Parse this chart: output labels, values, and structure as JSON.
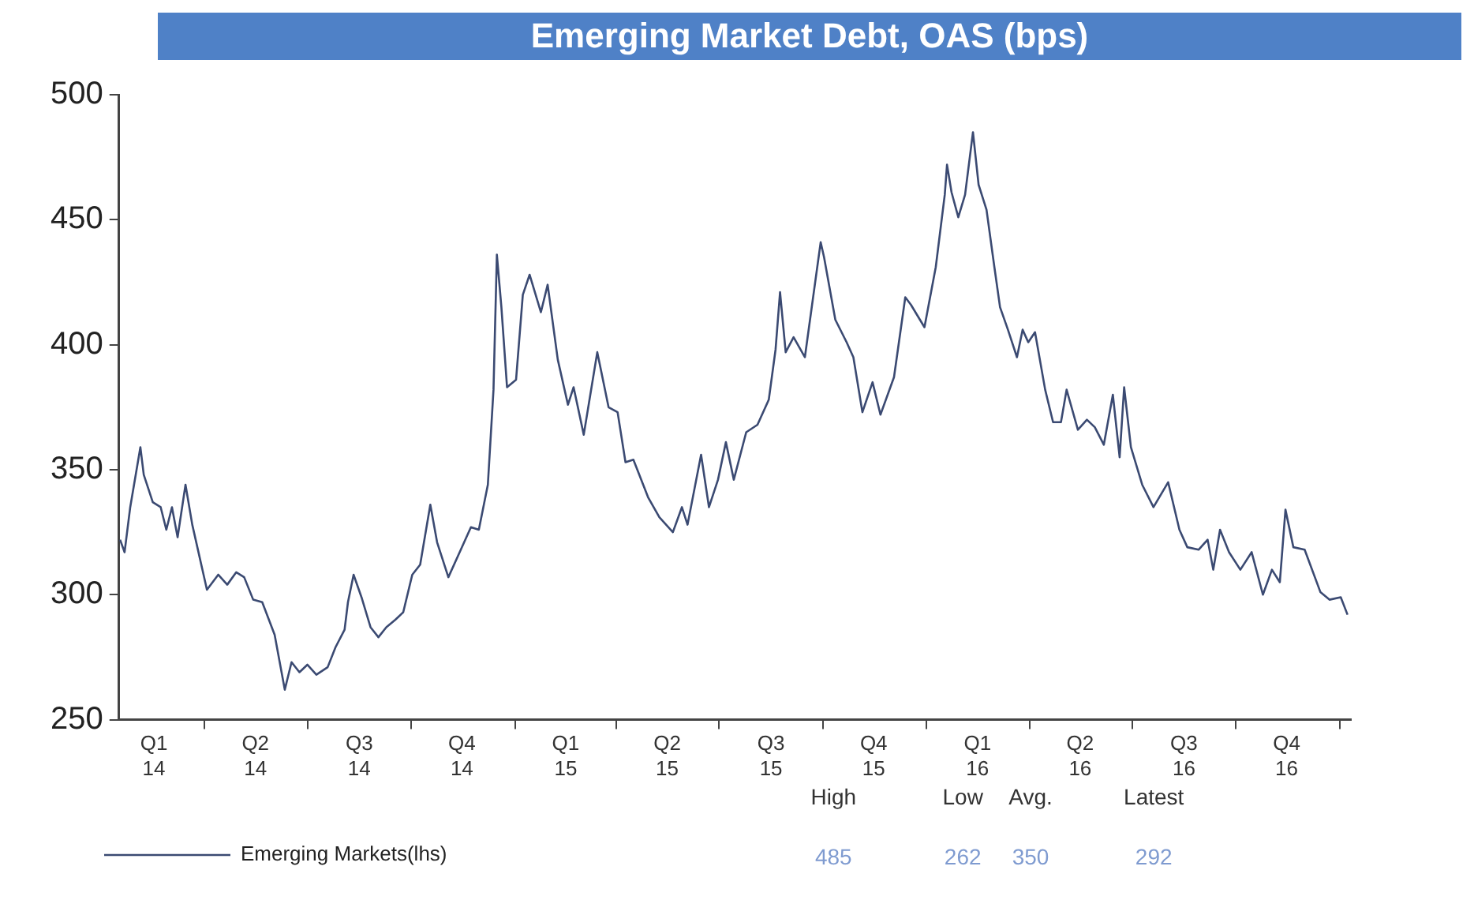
{
  "chart_data": {
    "type": "line",
    "title": "Emerging Market Debt, OAS (bps)",
    "x": [
      "2014-01-16",
      "2014-01-20",
      "2014-01-25",
      "2014-02-03",
      "2014-02-06",
      "2014-02-14",
      "2014-02-21",
      "2014-02-26",
      "2014-03-03",
      "2014-03-08",
      "2014-03-15",
      "2014-03-21",
      "2014-04-03",
      "2014-04-13",
      "2014-04-21",
      "2014-04-29",
      "2014-05-06",
      "2014-05-14",
      "2014-05-22",
      "2014-06-02",
      "2014-06-11",
      "2014-06-17",
      "2014-06-24",
      "2014-07-01",
      "2014-07-09",
      "2014-07-19",
      "2014-07-26",
      "2014-08-03",
      "2014-08-06",
      "2014-08-11",
      "2014-08-18",
      "2014-08-26",
      "2014-09-02",
      "2014-09-09",
      "2014-09-17",
      "2014-09-24",
      "2014-10-02",
      "2014-10-09",
      "2014-10-18",
      "2014-10-24",
      "2014-11-03",
      "2014-11-13",
      "2014-11-23",
      "2014-11-30",
      "2014-12-08",
      "2014-12-13",
      "2014-12-16",
      "2014-12-20",
      "2014-12-25",
      "2015-01-02",
      "2015-01-08",
      "2015-01-14",
      "2015-01-24",
      "2015-01-30",
      "2015-02-08",
      "2015-02-17",
      "2015-02-22",
      "2015-03-03",
      "2015-03-15",
      "2015-03-25",
      "2015-04-02",
      "2015-04-09",
      "2015-04-16",
      "2015-04-29",
      "2015-05-09",
      "2015-05-21",
      "2015-05-29",
      "2015-06-03",
      "2015-06-15",
      "2015-06-22",
      "2015-06-30",
      "2015-07-07",
      "2015-07-14",
      "2015-07-25",
      "2015-08-04",
      "2015-08-14",
      "2015-08-20",
      "2015-08-24",
      "2015-08-29",
      "2015-09-05",
      "2015-09-15",
      "2015-09-29",
      "2015-10-02",
      "2015-10-12",
      "2015-10-22",
      "2015-10-28",
      "2015-11-05",
      "2015-11-14",
      "2015-11-21",
      "2015-12-03",
      "2015-12-13",
      "2015-12-18",
      "2015-12-30",
      "2016-01-09",
      "2016-01-17",
      "2016-01-19",
      "2016-01-23",
      "2016-01-29",
      "2016-02-04",
      "2016-02-11",
      "2016-02-16",
      "2016-02-23",
      "2016-03-01",
      "2016-03-06",
      "2016-03-13",
      "2016-03-21",
      "2016-03-26",
      "2016-03-31",
      "2016-04-06",
      "2016-04-15",
      "2016-04-22",
      "2016-04-29",
      "2016-05-04",
      "2016-05-14",
      "2016-05-22",
      "2016-05-29",
      "2016-06-06",
      "2016-06-14",
      "2016-06-20",
      "2016-06-24",
      "2016-06-30",
      "2016-07-10",
      "2016-07-20",
      "2016-08-02",
      "2016-08-12",
      "2016-08-19",
      "2016-08-29",
      "2016-09-06",
      "2016-09-11",
      "2016-09-17",
      "2016-09-25",
      "2016-10-05",
      "2016-10-15",
      "2016-10-25",
      "2016-11-02",
      "2016-11-09",
      "2016-11-14",
      "2016-11-21",
      "2016-12-01",
      "2016-12-15",
      "2016-12-23",
      "2017-01-02",
      "2017-01-08"
    ],
    "series": [
      {
        "name": "Emerging Markets(lhs)",
        "color": "#3b4a72",
        "values": [
          322,
          317,
          335,
          359,
          348,
          337,
          335,
          326,
          335,
          323,
          344,
          328,
          302,
          308,
          304,
          309,
          307,
          298,
          297,
          284,
          262,
          273,
          269,
          272,
          268,
          271,
          279,
          286,
          297,
          308,
          299,
          287,
          283,
          287,
          290,
          293,
          308,
          312,
          336,
          321,
          307,
          317,
          327,
          326,
          344,
          382,
          436,
          415,
          383,
          386,
          420,
          428,
          413,
          424,
          394,
          376,
          383,
          364,
          397,
          375,
          373,
          353,
          354,
          339,
          331,
          325,
          335,
          328,
          356,
          335,
          346,
          361,
          346,
          365,
          368,
          378,
          398,
          421,
          397,
          403,
          395,
          441,
          435,
          410,
          401,
          395,
          373,
          385,
          372,
          387,
          419,
          416,
          407,
          431,
          460,
          472,
          461,
          451,
          460,
          485,
          464,
          454,
          431,
          415,
          406,
          395,
          406,
          401,
          405,
          382,
          369,
          369,
          382,
          366,
          370,
          367,
          360,
          380,
          355,
          383,
          359,
          344,
          335,
          345,
          326,
          319,
          318,
          322,
          310,
          326,
          317,
          310,
          317,
          300,
          310,
          305,
          334,
          319,
          318,
          301,
          298,
          299,
          292
        ]
      }
    ],
    "xlim": [
      "2014-01-15",
      "2017-01-11"
    ],
    "xticks": [
      {
        "value": "2014-02-15",
        "label": "Q1 14"
      },
      {
        "value": "2014-04-01",
        "label": null
      },
      {
        "value": "2014-05-16",
        "label": "Q2 14"
      },
      {
        "value": "2014-07-01",
        "label": null
      },
      {
        "value": "2014-08-16",
        "label": "Q3 14"
      },
      {
        "value": "2014-10-01",
        "label": null
      },
      {
        "value": "2014-11-15",
        "label": "Q4 14"
      },
      {
        "value": "2015-01-01",
        "label": null
      },
      {
        "value": "2015-02-15",
        "label": "Q1 15"
      },
      {
        "value": "2015-04-01",
        "label": null
      },
      {
        "value": "2015-05-16",
        "label": "Q2 15"
      },
      {
        "value": "2015-07-01",
        "label": null
      },
      {
        "value": "2015-08-16",
        "label": "Q3 15"
      },
      {
        "value": "2015-10-01",
        "label": null
      },
      {
        "value": "2015-11-15",
        "label": "Q4 15"
      },
      {
        "value": "2016-01-01",
        "label": null
      },
      {
        "value": "2016-02-15",
        "label": "Q1 16"
      },
      {
        "value": "2016-04-01",
        "label": null
      },
      {
        "value": "2016-05-16",
        "label": "Q2 16"
      },
      {
        "value": "2016-07-01",
        "label": null
      },
      {
        "value": "2016-08-16",
        "label": "Q3 16"
      },
      {
        "value": "2016-10-01",
        "label": null
      },
      {
        "value": "2016-11-15",
        "label": "Q4 16"
      },
      {
        "value": "2017-01-01",
        "label": null
      }
    ],
    "ylim": [
      250,
      500
    ],
    "yticks": [
      250,
      300,
      350,
      400,
      450,
      500
    ],
    "legend": "bottom left",
    "marker": "none",
    "line_style": "solid",
    "annotations": [
      "High",
      "Low",
      "Avg.",
      "Latest",
      "485",
      "262",
      "350",
      "292"
    ]
  }
}
